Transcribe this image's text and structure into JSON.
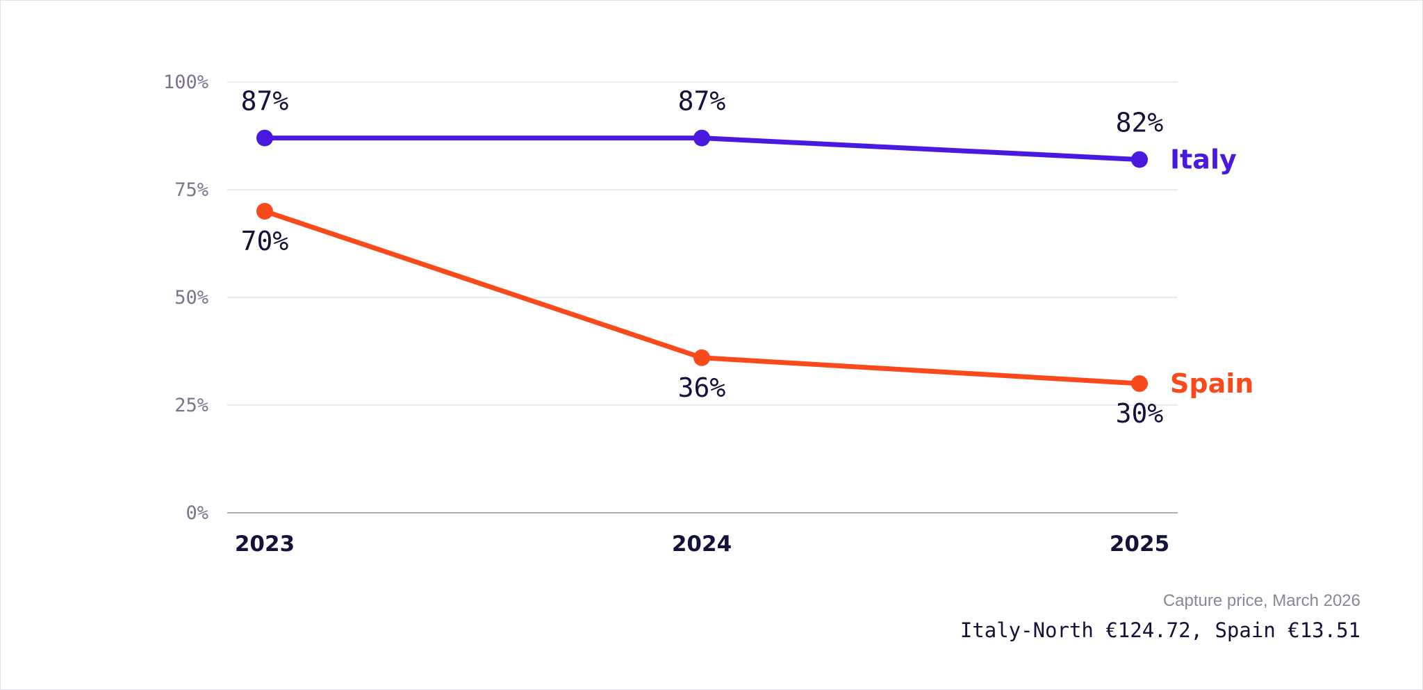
{
  "chart_data": {
    "type": "line",
    "categories": [
      "2023",
      "2024",
      "2025"
    ],
    "ylim": [
      0,
      100
    ],
    "yticks": [
      0,
      25,
      50,
      75,
      100
    ],
    "ytick_labels": [
      "0%",
      "25%",
      "50%",
      "75%",
      "100%"
    ],
    "grid": true,
    "series": [
      {
        "name": "Italy",
        "color": "#4a19e0",
        "values": [
          87,
          87,
          82
        ],
        "value_labels": [
          "87%",
          "87%",
          "82%"
        ],
        "label_position": "above"
      },
      {
        "name": "Spain",
        "color": "#fa4a1c",
        "values": [
          70,
          36,
          30
        ],
        "value_labels": [
          "70%",
          "36%",
          "30%"
        ],
        "label_position": "below"
      }
    ]
  },
  "footnote": {
    "line1": "Capture price, March 2026",
    "line2": "Italy-North €124.72, Spain €13.51"
  }
}
